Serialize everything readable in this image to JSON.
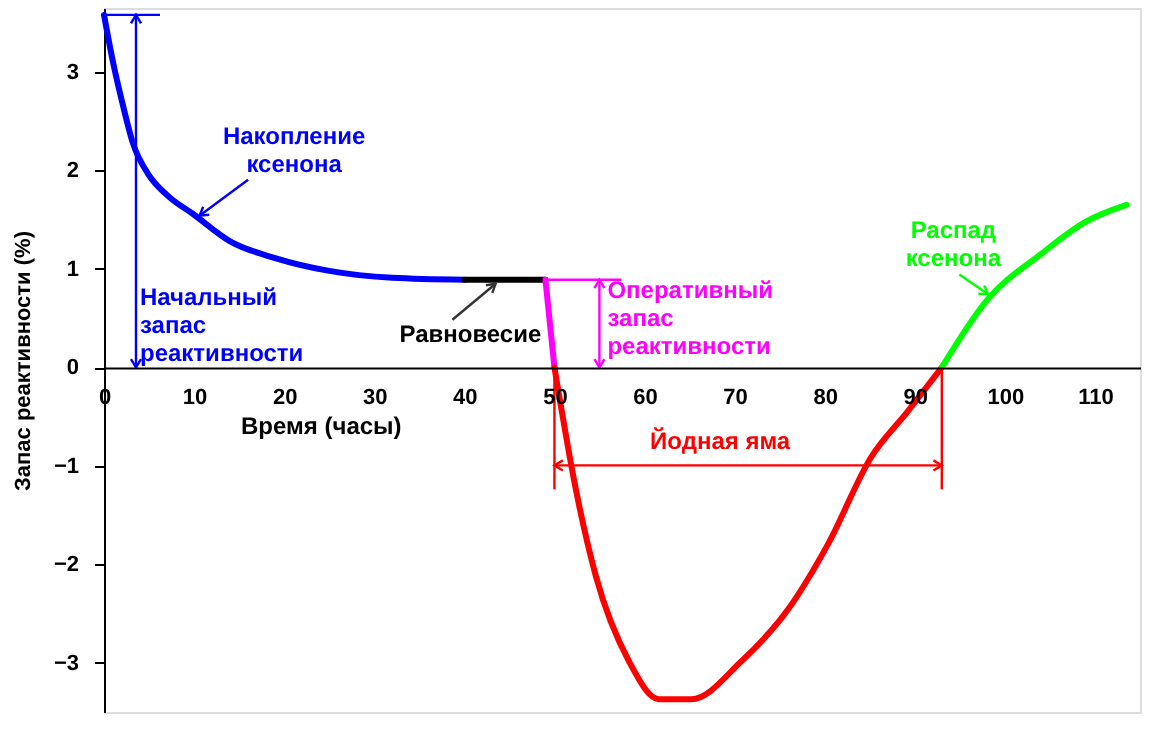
{
  "chart_data": {
    "type": "line",
    "xlabel": "Время (часы)",
    "ylabel": "Запас реактивности  (%)",
    "xlim": [
      0,
      115
    ],
    "ylim": [
      -3.5,
      3.65
    ],
    "xticks": [
      0,
      10,
      20,
      30,
      40,
      50,
      60,
      70,
      80,
      90,
      100,
      110
    ],
    "yticks": [
      -3,
      -2,
      -1,
      0,
      1,
      2,
      3
    ],
    "line_style": "solid",
    "series": [
      {
        "color": "#0000ff",
        "x": [
          0,
          1,
          2,
          3.2,
          5,
          7,
          10,
          14,
          19,
          25,
          32,
          40
        ],
        "values": [
          3.58,
          3.1,
          2.7,
          2.28,
          1.95,
          1.75,
          1.55,
          1.28,
          1.11,
          0.98,
          0.91,
          0.89
        ]
      },
      {
        "color": "#000000",
        "x": [
          40,
          49
        ],
        "values": [
          0.89,
          0.89
        ]
      },
      {
        "color": "#ff00ff",
        "x": [
          49,
          50
        ],
        "values": [
          0.89,
          0
        ]
      },
      {
        "color": "#ff0000",
        "x": [
          50,
          52.4,
          54.6,
          58.3,
          61.6,
          65.2,
          70.7,
          76,
          80.4,
          85.1,
          89.2,
          93
        ],
        "values": [
          0,
          -1.25,
          -2.12,
          -2.99,
          -3.37,
          -3.37,
          -2.99,
          -2.45,
          -1.79,
          -0.92,
          -0.45,
          0
        ]
      },
      {
        "color": "#00ff00",
        "x": [
          93,
          98,
          104,
          109,
          113.5
        ],
        "values": [
          0,
          0.68,
          1.15,
          1.48,
          1.65
        ]
      }
    ],
    "annotations": [
      {
        "text": "Накопление\nксенона",
        "x": 10,
        "y": 1.5
      },
      "Начальный\nзапас\nреактивности",
      {
        "text": "Равновесие",
        "x": 44,
        "y": 0.89
      },
      {
        "text": "Оперативный\nзапас\nреактивности",
        "x": 49,
        "y": 0.89
      },
      "Йодная яма",
      {
        "text": "Распад\nксенона",
        "x": 98.5,
        "y": 0.72
      }
    ]
  }
}
